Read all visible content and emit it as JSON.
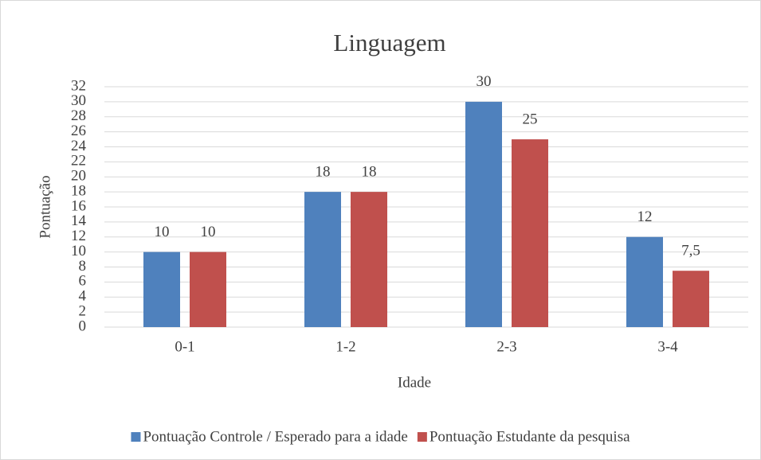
{
  "chart_data": {
    "type": "bar",
    "title": "Linguagem",
    "x_label": "Idade",
    "y_label": "Pontuação",
    "categories": [
      "0-1",
      "1-2",
      "2-3",
      "3-4"
    ],
    "series": [
      {
        "name": "Pontuação Controle / Esperado para a idade",
        "color": "#4f81bd",
        "values": [
          10,
          18,
          30,
          12
        ]
      },
      {
        "name": "Pontuação Estudante da pesquisa",
        "color": "#c0504d",
        "values": [
          10,
          18,
          25,
          7.5
        ],
        "value_labels": [
          "10",
          "18",
          "25",
          "7,5"
        ]
      }
    ],
    "ylim": [
      0,
      32
    ],
    "yticks": [
      0,
      2,
      4,
      6,
      8,
      10,
      12,
      14,
      16,
      18,
      20,
      22,
      24,
      26,
      28,
      30,
      32
    ],
    "grid": true,
    "legend": "bottom"
  }
}
